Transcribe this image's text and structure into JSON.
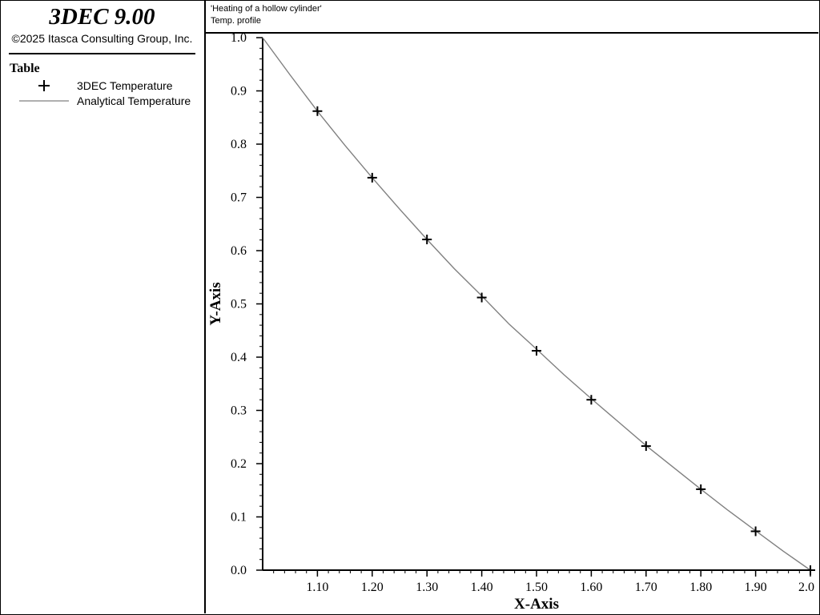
{
  "app": {
    "title": "3DEC 9.00",
    "copyright": "©2025 Itasca Consulting Group, Inc."
  },
  "legend": {
    "title": "Table",
    "items": [
      {
        "label": "3DEC Temperature",
        "symbol": "plus-marker-icon"
      },
      {
        "label": "Analytical Temperature",
        "symbol": "line-segment-icon"
      }
    ]
  },
  "header": {
    "line1": "'Heating of a hollow cylinder'",
    "line2": "Temp. profile"
  },
  "chart_data": {
    "type": "line",
    "xlabel": "X-Axis",
    "ylabel": "Y-Axis",
    "xlim": [
      1.0,
      2.0
    ],
    "ylim": [
      0.0,
      1.0
    ],
    "xticks": [
      "1.10",
      "1.20",
      "1.30",
      "1.40",
      "1.50",
      "1.60",
      "1.70",
      "1.80",
      "1.90",
      "2.0"
    ],
    "xtick_values": [
      1.1,
      1.2,
      1.3,
      1.4,
      1.5,
      1.6,
      1.7,
      1.8,
      1.9,
      2.0
    ],
    "yticks": [
      "0.0",
      "0.1",
      "0.2",
      "0.3",
      "0.4",
      "0.5",
      "0.6",
      "0.7",
      "0.8",
      "0.9",
      "1.0"
    ],
    "ytick_values": [
      0.0,
      0.1,
      0.2,
      0.3,
      0.4,
      0.5,
      0.6,
      0.7,
      0.8,
      0.9,
      1.0
    ],
    "grid": false,
    "series": [
      {
        "name": "3DEC Temperature",
        "style": "markers",
        "marker": "plus",
        "color": "#000000",
        "x": [
          1.1,
          1.2,
          1.3,
          1.4,
          1.5,
          1.6,
          1.7,
          1.8,
          1.9,
          2.0
        ],
        "y": [
          0.862,
          0.737,
          0.621,
          0.512,
          0.412,
          0.32,
          0.233,
          0.152,
          0.073,
          0.0
        ]
      },
      {
        "name": "Analytical Temperature",
        "style": "line",
        "color": "#808080",
        "x": [
          1.0,
          1.05,
          1.1,
          1.15,
          1.2,
          1.25,
          1.3,
          1.35,
          1.4,
          1.45,
          1.5,
          1.55,
          1.6,
          1.65,
          1.7,
          1.75,
          1.8,
          1.85,
          1.9,
          1.95,
          2.0
        ],
        "y": [
          1.0,
          0.93,
          0.862,
          0.798,
          0.737,
          0.678,
          0.621,
          0.566,
          0.515,
          0.462,
          0.415,
          0.367,
          0.322,
          0.278,
          0.234,
          0.193,
          0.152,
          0.112,
          0.074,
          0.036,
          0.0
        ]
      }
    ]
  }
}
